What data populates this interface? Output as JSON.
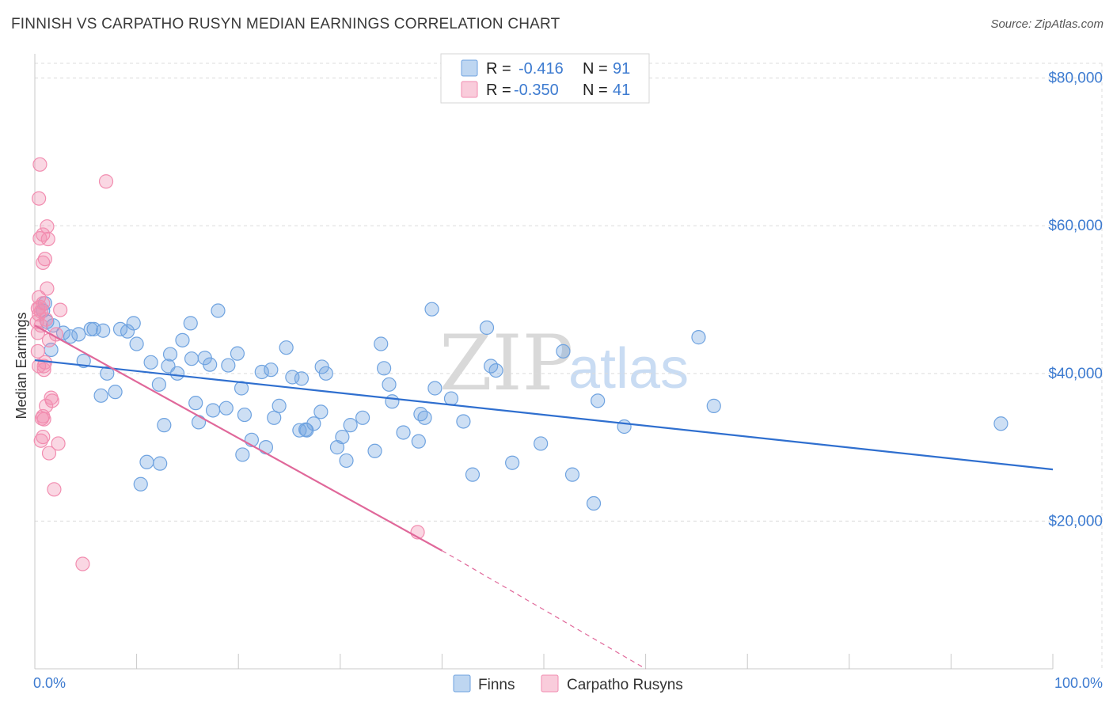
{
  "title": "FINNISH VS CARPATHO RUSYN MEDIAN EARNINGS CORRELATION CHART",
  "source": "Source: ZipAtlas.com",
  "watermark": {
    "zip": "ZIP",
    "atlas": "atlas"
  },
  "colors": {
    "finns": "#6fa3e0",
    "finns_line": "#2f6fcf",
    "rusyns": "#f28db0",
    "rusyns_line": "#e0689a",
    "axis_text": "#3d7bd0",
    "grid": "#dcdcdc"
  },
  "legend": {
    "finns": {
      "r_label": "R =",
      "r_value": "-0.416",
      "n_label": "N =",
      "n_value": "91"
    },
    "rusyns": {
      "r_label": "R =",
      "r_value": "-0.350",
      "n_label": "N =",
      "n_value": "41"
    }
  },
  "bottom_legend": {
    "finns": "Finns",
    "rusyns": "Carpatho Rusyns"
  },
  "chart_data": {
    "type": "scatter",
    "title": "FINNISH VS CARPATHO RUSYN MEDIAN EARNINGS CORRELATION CHART",
    "xlabel": "",
    "ylabel": "Median Earnings",
    "xlim": [
      0,
      100
    ],
    "ylim": [
      0,
      82000
    ],
    "x_tick_labels": [
      "0.0%",
      "100.0%"
    ],
    "y_ticks": [
      20000,
      40000,
      60000,
      80000
    ],
    "y_tick_labels": [
      "$20,000",
      "$40,000",
      "$60,000",
      "$80,000"
    ],
    "grid": true,
    "legend_position": "top-center",
    "series": [
      {
        "name": "Finns",
        "trend": {
          "x": [
            0,
            100
          ],
          "y": [
            41800,
            27000
          ]
        },
        "points": [
          [
            0.8,
            48500
          ],
          [
            1.0,
            49500
          ],
          [
            1.2,
            47000
          ],
          [
            1.8,
            46500
          ],
          [
            2.8,
            45500
          ],
          [
            3.5,
            45000
          ],
          [
            4.3,
            45300
          ],
          [
            5.5,
            46000
          ],
          [
            5.8,
            46000
          ],
          [
            6.7,
            45800
          ],
          [
            8.4,
            46000
          ],
          [
            9.1,
            45700
          ],
          [
            9.7,
            46800
          ],
          [
            12.2,
            38500
          ],
          [
            1.6,
            43200
          ],
          [
            4.8,
            41700
          ],
          [
            7.9,
            37500
          ],
          [
            6.5,
            37000
          ],
          [
            7.1,
            40000
          ],
          [
            13.3,
            42600
          ],
          [
            11.4,
            41500
          ],
          [
            10.0,
            44000
          ],
          [
            13.1,
            41000
          ],
          [
            14.5,
            44500
          ],
          [
            15.3,
            46800
          ],
          [
            15.4,
            42000
          ],
          [
            16.7,
            42100
          ],
          [
            17.2,
            41200
          ],
          [
            18.0,
            48500
          ],
          [
            19.0,
            41100
          ],
          [
            19.9,
            42700
          ],
          [
            20.3,
            38000
          ],
          [
            14.0,
            40000
          ],
          [
            12.7,
            33000
          ],
          [
            15.8,
            36000
          ],
          [
            16.1,
            33400
          ],
          [
            17.5,
            35000
          ],
          [
            18.8,
            35300
          ],
          [
            20.6,
            34400
          ],
          [
            21.3,
            31000
          ],
          [
            22.7,
            30000
          ],
          [
            22.3,
            40200
          ],
          [
            23.2,
            40500
          ],
          [
            23.5,
            34000
          ],
          [
            24.0,
            35600
          ],
          [
            24.7,
            43500
          ],
          [
            25.3,
            39500
          ],
          [
            26.0,
            32300
          ],
          [
            26.6,
            32400
          ],
          [
            27.4,
            33200
          ],
          [
            28.1,
            34800
          ],
          [
            28.6,
            40000
          ],
          [
            29.7,
            30000
          ],
          [
            30.2,
            31400
          ],
          [
            31.0,
            33000
          ],
          [
            32.2,
            34000
          ],
          [
            33.4,
            29500
          ],
          [
            34.0,
            44000
          ],
          [
            34.8,
            38500
          ],
          [
            35.1,
            36200
          ],
          [
            36.2,
            32000
          ],
          [
            37.7,
            30800
          ],
          [
            37.9,
            34500
          ],
          [
            38.3,
            34000
          ],
          [
            39.0,
            48700
          ],
          [
            39.3,
            38000
          ],
          [
            40.9,
            36600
          ],
          [
            42.1,
            33500
          ],
          [
            43.0,
            26300
          ],
          [
            44.8,
            41000
          ],
          [
            45.3,
            40400
          ],
          [
            44.4,
            46200
          ],
          [
            46.9,
            27900
          ],
          [
            49.7,
            30500
          ],
          [
            51.9,
            43000
          ],
          [
            52.8,
            26300
          ],
          [
            54.9,
            22400
          ],
          [
            55.3,
            36300
          ],
          [
            57.9,
            32800
          ],
          [
            65.2,
            44900
          ],
          [
            66.7,
            35600
          ],
          [
            94.9,
            33200
          ],
          [
            10.4,
            25000
          ],
          [
            11.0,
            28000
          ],
          [
            12.3,
            27800
          ],
          [
            20.4,
            29000
          ],
          [
            26.7,
            32300
          ],
          [
            30.6,
            28200
          ],
          [
            28.2,
            40900
          ],
          [
            34.3,
            40700
          ],
          [
            26.2,
            39300
          ]
        ]
      },
      {
        "name": "Carpatho Rusyns",
        "trend": {
          "x": [
            0,
            40
          ],
          "y": [
            46500,
            16000
          ]
        },
        "trend_dashed": {
          "x": [
            40,
            60
          ],
          "y": [
            16000,
            0
          ]
        },
        "points": [
          [
            0.5,
            68300
          ],
          [
            0.4,
            63700
          ],
          [
            1.2,
            59900
          ],
          [
            0.8,
            58800
          ],
          [
            1.3,
            58200
          ],
          [
            0.5,
            58300
          ],
          [
            1.0,
            55500
          ],
          [
            0.8,
            55000
          ],
          [
            1.2,
            51500
          ],
          [
            0.4,
            50300
          ],
          [
            0.8,
            49500
          ],
          [
            0.3,
            48800
          ],
          [
            0.6,
            48400
          ],
          [
            0.4,
            48000
          ],
          [
            0.2,
            47000
          ],
          [
            0.6,
            46500
          ],
          [
            2.1,
            45300
          ],
          [
            1.0,
            41500
          ],
          [
            0.3,
            43000
          ],
          [
            0.4,
            41000
          ],
          [
            0.9,
            41000
          ],
          [
            1.6,
            36700
          ],
          [
            1.7,
            36300
          ],
          [
            1.1,
            35600
          ],
          [
            0.8,
            34200
          ],
          [
            0.7,
            33900
          ],
          [
            0.9,
            33800
          ],
          [
            0.8,
            31400
          ],
          [
            0.6,
            30900
          ],
          [
            2.3,
            30500
          ],
          [
            1.4,
            29200
          ],
          [
            1.9,
            24300
          ],
          [
            4.7,
            14200
          ],
          [
            7.0,
            66000
          ],
          [
            37.6,
            18500
          ],
          [
            2.5,
            48600
          ],
          [
            0.3,
            45500
          ],
          [
            0.5,
            49000
          ],
          [
            1.1,
            47300
          ],
          [
            0.9,
            40500
          ],
          [
            1.4,
            44500
          ]
        ]
      }
    ]
  }
}
